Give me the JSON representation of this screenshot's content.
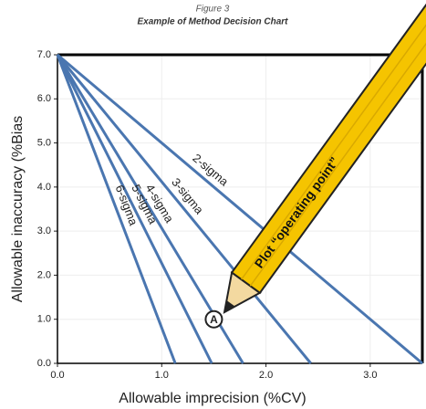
{
  "chart_data": {
    "type": "line",
    "figure_label": "Figure 3",
    "title": "Example of Method Decision Chart",
    "x_label": "Allowable imprecision (%CV)",
    "y_label": "Allowable inaccuracy (%Bias",
    "xlim": [
      0,
      3.5
    ],
    "ylim": [
      0,
      7
    ],
    "xticks": [
      {
        "value": 0,
        "label": "0.0"
      },
      {
        "value": 1,
        "label": "1.0"
      },
      {
        "value": 2,
        "label": "2.0"
      },
      {
        "value": 3,
        "label": "3.0"
      }
    ],
    "yticks": [
      {
        "value": 0,
        "label": "0.0"
      },
      {
        "value": 1,
        "label": "1.0"
      },
      {
        "value": 2,
        "label": "2.0"
      },
      {
        "value": 3,
        "label": "3.0"
      },
      {
        "value": 4,
        "label": "4.0"
      },
      {
        "value": 5,
        "label": "5.0"
      },
      {
        "value": 6,
        "label": "6.0"
      },
      {
        "value": 7,
        "label": "7.0"
      }
    ],
    "grid": true,
    "series": [
      {
        "name": "2-sigma",
        "color": "#4a76b0",
        "x": [
          0,
          3.5
        ],
        "values": [
          7,
          0
        ]
      },
      {
        "name": "3-sigma",
        "color": "#4a76b0",
        "x": [
          0,
          2.43
        ],
        "values": [
          7,
          0
        ]
      },
      {
        "name": "4-sigma",
        "color": "#4a76b0",
        "x": [
          0,
          1.78
        ],
        "values": [
          7,
          0
        ]
      },
      {
        "name": "5-sigma",
        "color": "#4a76b0",
        "x": [
          0,
          1.48
        ],
        "values": [
          7,
          0
        ]
      },
      {
        "name": "6-sigma",
        "color": "#4a76b0",
        "x": [
          0,
          1.13
        ],
        "values": [
          7,
          0
        ]
      }
    ],
    "operating_point": {
      "label": "A",
      "x": 1.5,
      "y": 1.0,
      "annotation": "Plot “operating point”"
    }
  }
}
